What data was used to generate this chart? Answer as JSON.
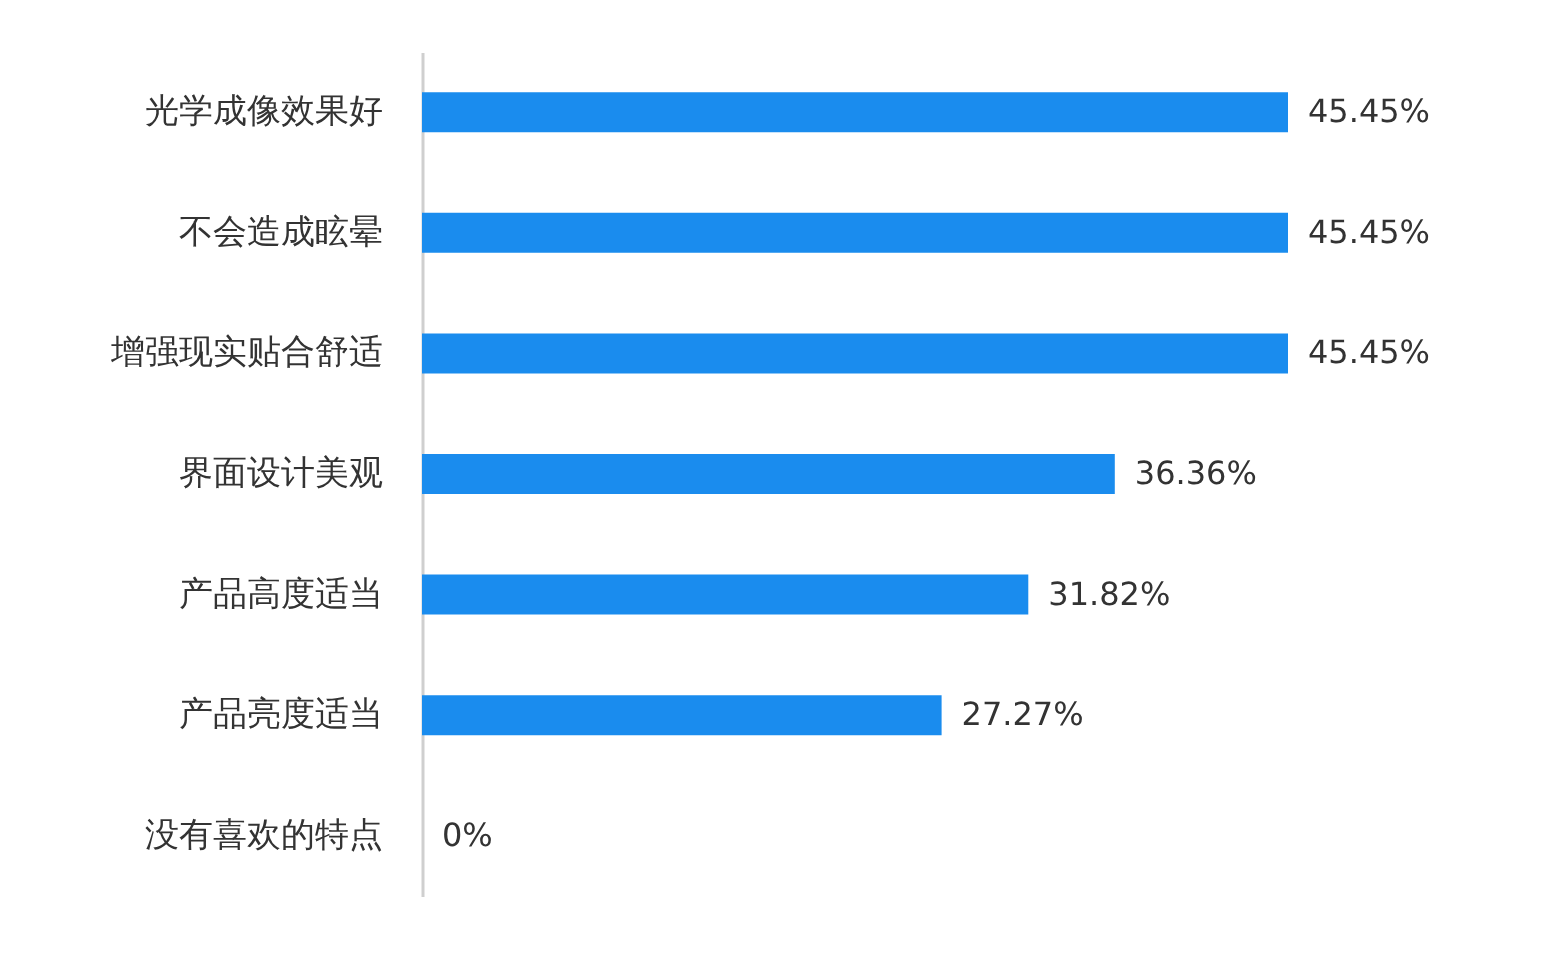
{
  "chart_data": {
    "type": "bar",
    "orientation": "horizontal",
    "categories": [
      "光学成像效果好",
      "不会造成眩晕",
      "增强现实贴合舒适",
      "界面设计美观",
      "产品高度适当",
      "产品亮度适当",
      "没有喜欢的特点"
    ],
    "values": [
      45.45,
      45.45,
      45.45,
      36.36,
      31.82,
      27.27,
      0
    ],
    "value_labels": [
      "45.45%",
      "45.45%",
      "45.45%",
      "36.36%",
      "31.82%",
      "27.27%",
      "0%"
    ],
    "color": "#1a8cee"
  }
}
